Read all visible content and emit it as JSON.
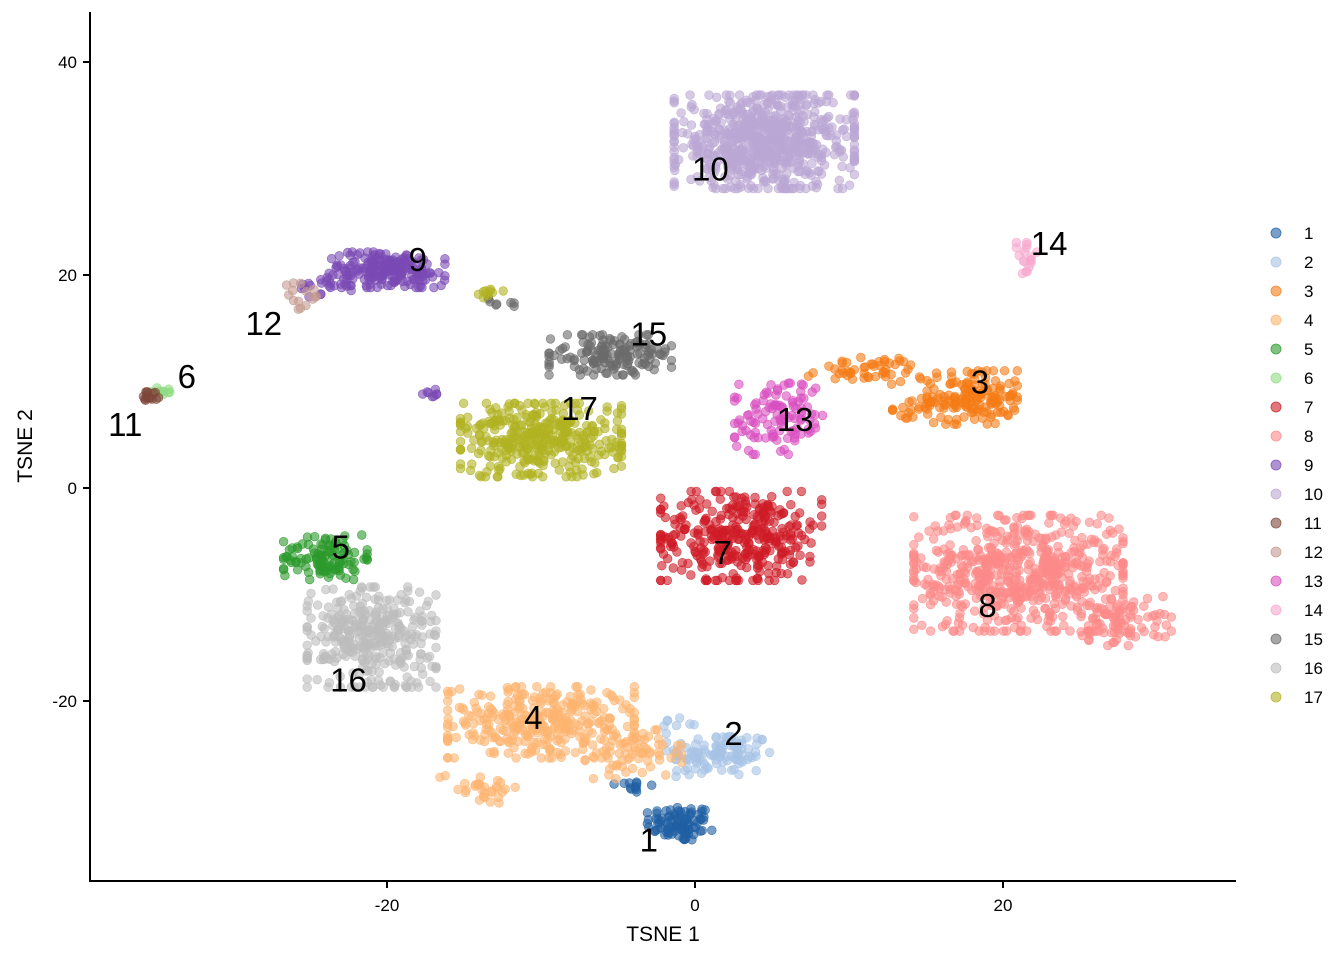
{
  "chart_data": {
    "type": "scatter",
    "title": "",
    "xlabel": "TSNE 1",
    "ylabel": "TSNE 2",
    "xlim": [
      -39.5,
      35
    ],
    "ylim": [
      -36.5,
      44.5
    ],
    "x_ticks": [
      -20,
      0,
      20
    ],
    "x_tick_labels": [
      "-20",
      "0",
      "20"
    ],
    "y_ticks": [
      -20,
      0,
      20,
      40
    ],
    "y_tick_labels": [
      "-20",
      "0",
      "20",
      "40"
    ],
    "grid": false,
    "legend_position": "right",
    "legend": [
      {
        "label": "1",
        "color": "#1f5fa3"
      },
      {
        "label": "2",
        "color": "#a6c3e6"
      },
      {
        "label": "3",
        "color": "#f57c16"
      },
      {
        "label": "4",
        "color": "#fdb470"
      },
      {
        "label": "5",
        "color": "#2b9a2b"
      },
      {
        "label": "6",
        "color": "#8fdc82"
      },
      {
        "label": "7",
        "color": "#cf1b26"
      },
      {
        "label": "8",
        "color": "#fc8a88"
      },
      {
        "label": "9",
        "color": "#7a4ab4"
      },
      {
        "label": "10",
        "color": "#bba7d4"
      },
      {
        "label": "11",
        "color": "#7f463a"
      },
      {
        "label": "12",
        "color": "#c39a8f"
      },
      {
        "label": "13",
        "color": "#d94fbf"
      },
      {
        "label": "14",
        "color": "#f6a8cd"
      },
      {
        "label": "15",
        "color": "#6a6a6a"
      },
      {
        "label": "16",
        "color": "#bdbdbd"
      },
      {
        "label": "17",
        "color": "#b1b322"
      }
    ],
    "clusters": [
      {
        "id": "1",
        "label_pos": [
          -3,
          -33
        ],
        "blobs": [
          [
            -1,
            -31.5,
            2.0,
            1.6,
            90
          ],
          [
            -4,
            -28,
            1.2,
            0.8,
            12
          ]
        ]
      },
      {
        "id": "2",
        "label_pos": [
          2.5,
          -23
        ],
        "blobs": [
          [
            1.5,
            -25,
            3.2,
            2.0,
            110
          ],
          [
            -1,
            -22,
            1.0,
            1.0,
            8
          ]
        ]
      },
      {
        "id": "3",
        "label_pos": [
          18.5,
          10
        ],
        "blobs": [
          [
            18,
            8.5,
            2.8,
            2.4,
            150
          ],
          [
            11,
            11,
            3.5,
            1.2,
            50
          ],
          [
            14.5,
            7.5,
            1.6,
            0.9,
            20
          ]
        ]
      },
      {
        "id": "4",
        "label_pos": [
          -10.5,
          -21.5
        ],
        "blobs": [
          [
            -10,
            -22,
            5.8,
            3.2,
            320
          ],
          [
            -4,
            -25,
            3.0,
            2.2,
            70
          ],
          [
            -14,
            -28,
            2.5,
            1.5,
            30
          ]
        ]
      },
      {
        "id": "5",
        "label_pos": [
          -23,
          -5.5
        ],
        "blobs": [
          [
            -24,
            -6.5,
            2.6,
            2.0,
            110
          ]
        ]
      },
      {
        "id": "6",
        "label_pos": [
          -33,
          10.5
        ],
        "blobs": [
          [
            -34.5,
            9,
            0.7,
            0.5,
            10
          ]
        ]
      },
      {
        "id": "7",
        "label_pos": [
          1.8,
          -6
        ],
        "blobs": [
          [
            3,
            -4.5,
            5.0,
            4.0,
            340
          ]
        ]
      },
      {
        "id": "8",
        "label_pos": [
          19,
          -11
        ],
        "blobs": [
          [
            21,
            -8,
            6.5,
            5.2,
            620
          ],
          [
            28,
            -12.5,
            2.8,
            2.2,
            80
          ]
        ]
      },
      {
        "id": "9",
        "label_pos": [
          -18,
          21.5
        ],
        "blobs": [
          [
            -20,
            20.5,
            3.6,
            1.6,
            200
          ],
          [
            -24,
            19,
            1.6,
            1.0,
            20
          ],
          [
            -17,
            8.8,
            0.8,
            0.6,
            8
          ]
        ]
      },
      {
        "id": "10",
        "label_pos": [
          1,
          30
        ],
        "blobs": [
          [
            4.5,
            32.5,
            5.6,
            4.2,
            700
          ]
        ]
      },
      {
        "id": "11",
        "label_pos": [
          -37,
          6
        ],
        "blobs": [
          [
            -35.5,
            8.5,
            0.8,
            0.5,
            15
          ]
        ]
      },
      {
        "id": "12",
        "label_pos": [
          -28,
          15.5
        ],
        "blobs": [
          [
            -25.5,
            18,
            1.3,
            1.2,
            15
          ]
        ]
      },
      {
        "id": "13",
        "label_pos": [
          6.5,
          6.5
        ],
        "blobs": [
          [
            5.5,
            6.5,
            2.8,
            3.2,
            110
          ]
        ]
      },
      {
        "id": "14",
        "label_pos": [
          23,
          23
        ],
        "blobs": [
          [
            21.6,
            21.6,
            0.7,
            1.4,
            18
          ]
        ]
      },
      {
        "id": "15",
        "label_pos": [
          -3,
          14.5
        ],
        "blobs": [
          [
            -5.5,
            12.5,
            3.8,
            1.8,
            150
          ],
          [
            -13,
            17.5,
            1.2,
            0.6,
            8
          ]
        ]
      },
      {
        "id": "16",
        "label_pos": [
          -22.5,
          -18
        ],
        "blobs": [
          [
            -21,
            -14,
            4.0,
            4.5,
            330
          ]
        ]
      },
      {
        "id": "17",
        "label_pos": [
          -7.5,
          7.5
        ],
        "blobs": [
          [
            -10,
            4.5,
            5.0,
            3.3,
            360
          ],
          [
            -13.5,
            18.3,
            1.0,
            0.5,
            10
          ]
        ]
      }
    ]
  }
}
